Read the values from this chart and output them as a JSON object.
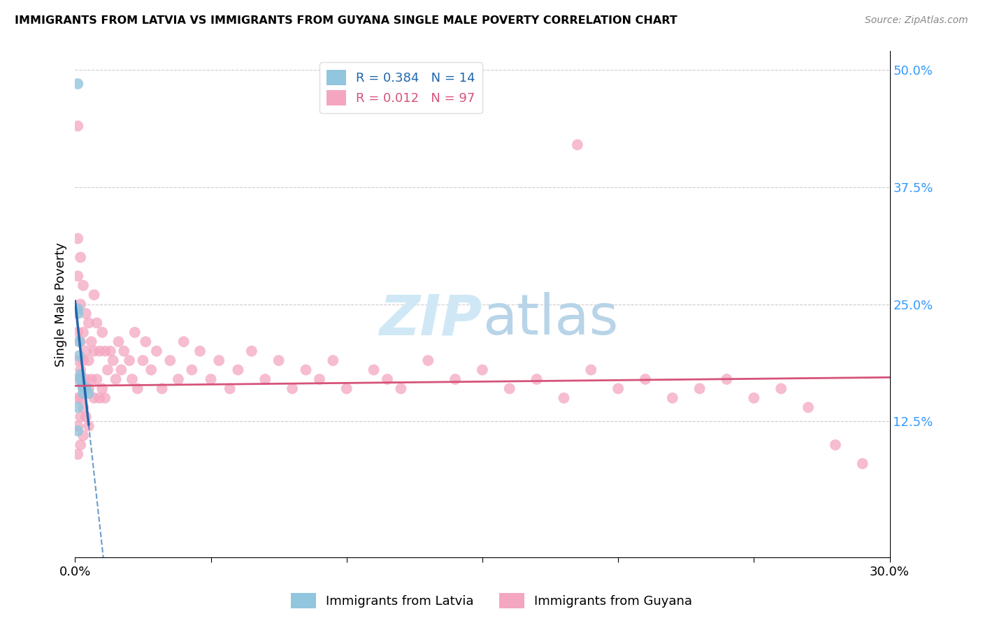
{
  "title": "IMMIGRANTS FROM LATVIA VS IMMIGRANTS FROM GUYANA SINGLE MALE POVERTY CORRELATION CHART",
  "source": "Source: ZipAtlas.com",
  "ylabel": "Single Male Poverty",
  "legend_latvia": "Immigrants from Latvia",
  "legend_guyana": "Immigrants from Guyana",
  "xmin": 0.0,
  "xmax": 0.3,
  "ymin": -0.02,
  "ymax": 0.52,
  "ytick_positions": [
    0.0,
    0.125,
    0.25,
    0.375,
    0.5
  ],
  "ytick_labels": [
    "",
    "12.5%",
    "25.0%",
    "37.5%",
    "50.0%"
  ],
  "color_latvia": "#92c5de",
  "color_guyana": "#f4a6c0",
  "color_line_latvia": "#2166ac",
  "color_line_guyana": "#d6537a",
  "watermark_color": "#d0e8f5",
  "latvia_x": [
    0.001,
    0.001,
    0.001,
    0.0015,
    0.0015,
    0.002,
    0.002,
    0.0025,
    0.003,
    0.003,
    0.004,
    0.005,
    0.001,
    0.001
  ],
  "latvia_y": [
    0.485,
    0.245,
    0.24,
    0.21,
    0.195,
    0.175,
    0.17,
    0.165,
    0.16,
    0.155,
    0.16,
    0.155,
    0.14,
    0.115
  ],
  "guyana_x": [
    0.001,
    0.001,
    0.001,
    0.001,
    0.001,
    0.001,
    0.001,
    0.001,
    0.001,
    0.002,
    0.002,
    0.002,
    0.002,
    0.002,
    0.002,
    0.002,
    0.003,
    0.003,
    0.003,
    0.003,
    0.003,
    0.003,
    0.004,
    0.004,
    0.004,
    0.004,
    0.005,
    0.005,
    0.005,
    0.005,
    0.006,
    0.006,
    0.007,
    0.007,
    0.007,
    0.008,
    0.008,
    0.009,
    0.009,
    0.01,
    0.01,
    0.011,
    0.011,
    0.012,
    0.013,
    0.014,
    0.015,
    0.016,
    0.017,
    0.018,
    0.02,
    0.021,
    0.022,
    0.023,
    0.025,
    0.026,
    0.028,
    0.03,
    0.032,
    0.035,
    0.038,
    0.04,
    0.043,
    0.046,
    0.05,
    0.053,
    0.057,
    0.06,
    0.065,
    0.07,
    0.075,
    0.08,
    0.085,
    0.09,
    0.095,
    0.1,
    0.11,
    0.115,
    0.12,
    0.13,
    0.14,
    0.15,
    0.16,
    0.17,
    0.18,
    0.19,
    0.2,
    0.21,
    0.22,
    0.23,
    0.24,
    0.25,
    0.26,
    0.27,
    0.28,
    0.185,
    0.29
  ],
  "guyana_y": [
    0.44,
    0.32,
    0.28,
    0.22,
    0.19,
    0.17,
    0.15,
    0.12,
    0.09,
    0.3,
    0.25,
    0.21,
    0.18,
    0.15,
    0.13,
    0.1,
    0.27,
    0.22,
    0.19,
    0.16,
    0.14,
    0.11,
    0.24,
    0.2,
    0.17,
    0.13,
    0.23,
    0.19,
    0.16,
    0.12,
    0.21,
    0.17,
    0.26,
    0.2,
    0.15,
    0.23,
    0.17,
    0.2,
    0.15,
    0.22,
    0.16,
    0.2,
    0.15,
    0.18,
    0.2,
    0.19,
    0.17,
    0.21,
    0.18,
    0.2,
    0.19,
    0.17,
    0.22,
    0.16,
    0.19,
    0.21,
    0.18,
    0.2,
    0.16,
    0.19,
    0.17,
    0.21,
    0.18,
    0.2,
    0.17,
    0.19,
    0.16,
    0.18,
    0.2,
    0.17,
    0.19,
    0.16,
    0.18,
    0.17,
    0.19,
    0.16,
    0.18,
    0.17,
    0.16,
    0.19,
    0.17,
    0.18,
    0.16,
    0.17,
    0.15,
    0.18,
    0.16,
    0.17,
    0.15,
    0.16,
    0.17,
    0.15,
    0.16,
    0.14,
    0.1,
    0.42,
    0.08
  ]
}
